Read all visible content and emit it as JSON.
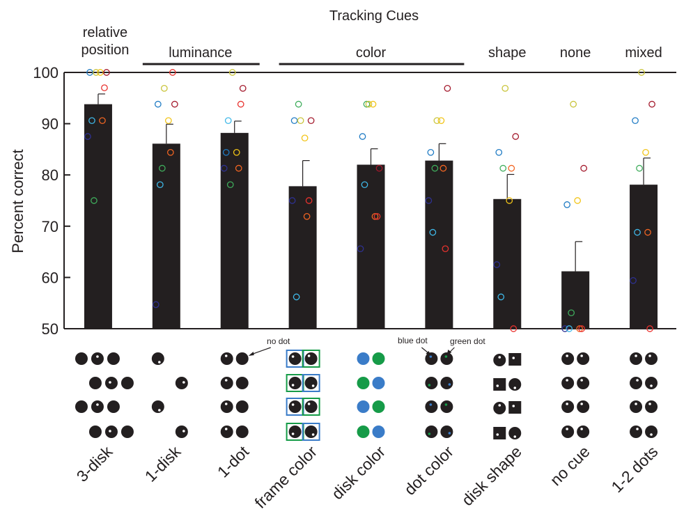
{
  "chart_data": {
    "type": "bar",
    "title": "Tracking Cues",
    "ylabel": "Percent correct",
    "ylim": [
      50,
      100
    ],
    "yticks": [
      50,
      60,
      70,
      80,
      90,
      100
    ],
    "grid": false,
    "categories": [
      "3-disk",
      "1-disk",
      "1-dot",
      "frame color",
      "disk color",
      "dot color",
      "disk shape",
      "no cue",
      "1-2 dots"
    ],
    "groups": [
      {
        "label": "relative position",
        "from": 0,
        "to": 0,
        "line": false
      },
      {
        "label": "luminance",
        "from": 1,
        "to": 2,
        "line": true
      },
      {
        "label": "color",
        "from": 3,
        "to": 5,
        "line": true
      },
      {
        "label": "shape",
        "from": 6,
        "to": 6,
        "line": false
      },
      {
        "label": "none",
        "from": 7,
        "to": 7,
        "line": false
      },
      {
        "label": "mixed",
        "from": 8,
        "to": 8,
        "line": false
      }
    ],
    "values": [
      93.8,
      86.1,
      88.2,
      77.8,
      82.0,
      82.8,
      75.3,
      61.2,
      78.1
    ],
    "errors": [
      2.0,
      3.8,
      2.3,
      5.0,
      3.1,
      3.3,
      4.8,
      5.8,
      5.2
    ],
    "subjects": [
      {
        "color": "#2e3192",
        "values": [
          87.5,
          54.7,
          81.3,
          75.0,
          65.6,
          75.0,
          62.5,
          50.0,
          59.4
        ]
      },
      {
        "color": "#1f7bc4",
        "values": [
          100,
          93.8,
          84.4,
          90.6,
          87.5,
          84.4,
          84.4,
          74.2,
          90.6
        ]
      },
      {
        "color": "#3fb8e8",
        "values": [
          90.6,
          78.1,
          90.6,
          56.2,
          78.1,
          68.8,
          56.2,
          50.0,
          68.8
        ]
      },
      {
        "color": "#3fad5c",
        "values": [
          75.0,
          81.3,
          78.1,
          93.8,
          93.8,
          81.3,
          81.3,
          53.1,
          81.3
        ]
      },
      {
        "color": "#c9c43a",
        "values": [
          100,
          96.9,
          100,
          90.6,
          93.8,
          90.6,
          96.9,
          93.8,
          100
        ]
      },
      {
        "color": "#f2c417",
        "values": [
          100,
          90.6,
          84.4,
          87.2,
          93.8,
          90.6,
          75.0,
          75.0,
          84.4
        ]
      },
      {
        "color": "#f26522",
        "values": [
          90.6,
          84.4,
          81.3,
          71.9,
          71.9,
          81.3,
          81.3,
          50.0,
          68.8
        ]
      },
      {
        "color": "#e8322e",
        "values": [
          97.0,
          100,
          93.8,
          75.0,
          71.9,
          65.6,
          50.0,
          50.0,
          50.0
        ]
      },
      {
        "color": "#a3182b",
        "values": [
          100,
          93.8,
          96.9,
          90.6,
          81.3,
          96.9,
          87.5,
          81.3,
          93.8
        ]
      }
    ],
    "annotations": {
      "no_dot": "no dot",
      "blue_dot": "blue dot",
      "green_dot": "green dot"
    },
    "stimulus_colors": {
      "disk": "#231f20",
      "blue": "#3a7cc8",
      "green": "#169b48",
      "white": "#ffffff"
    }
  }
}
